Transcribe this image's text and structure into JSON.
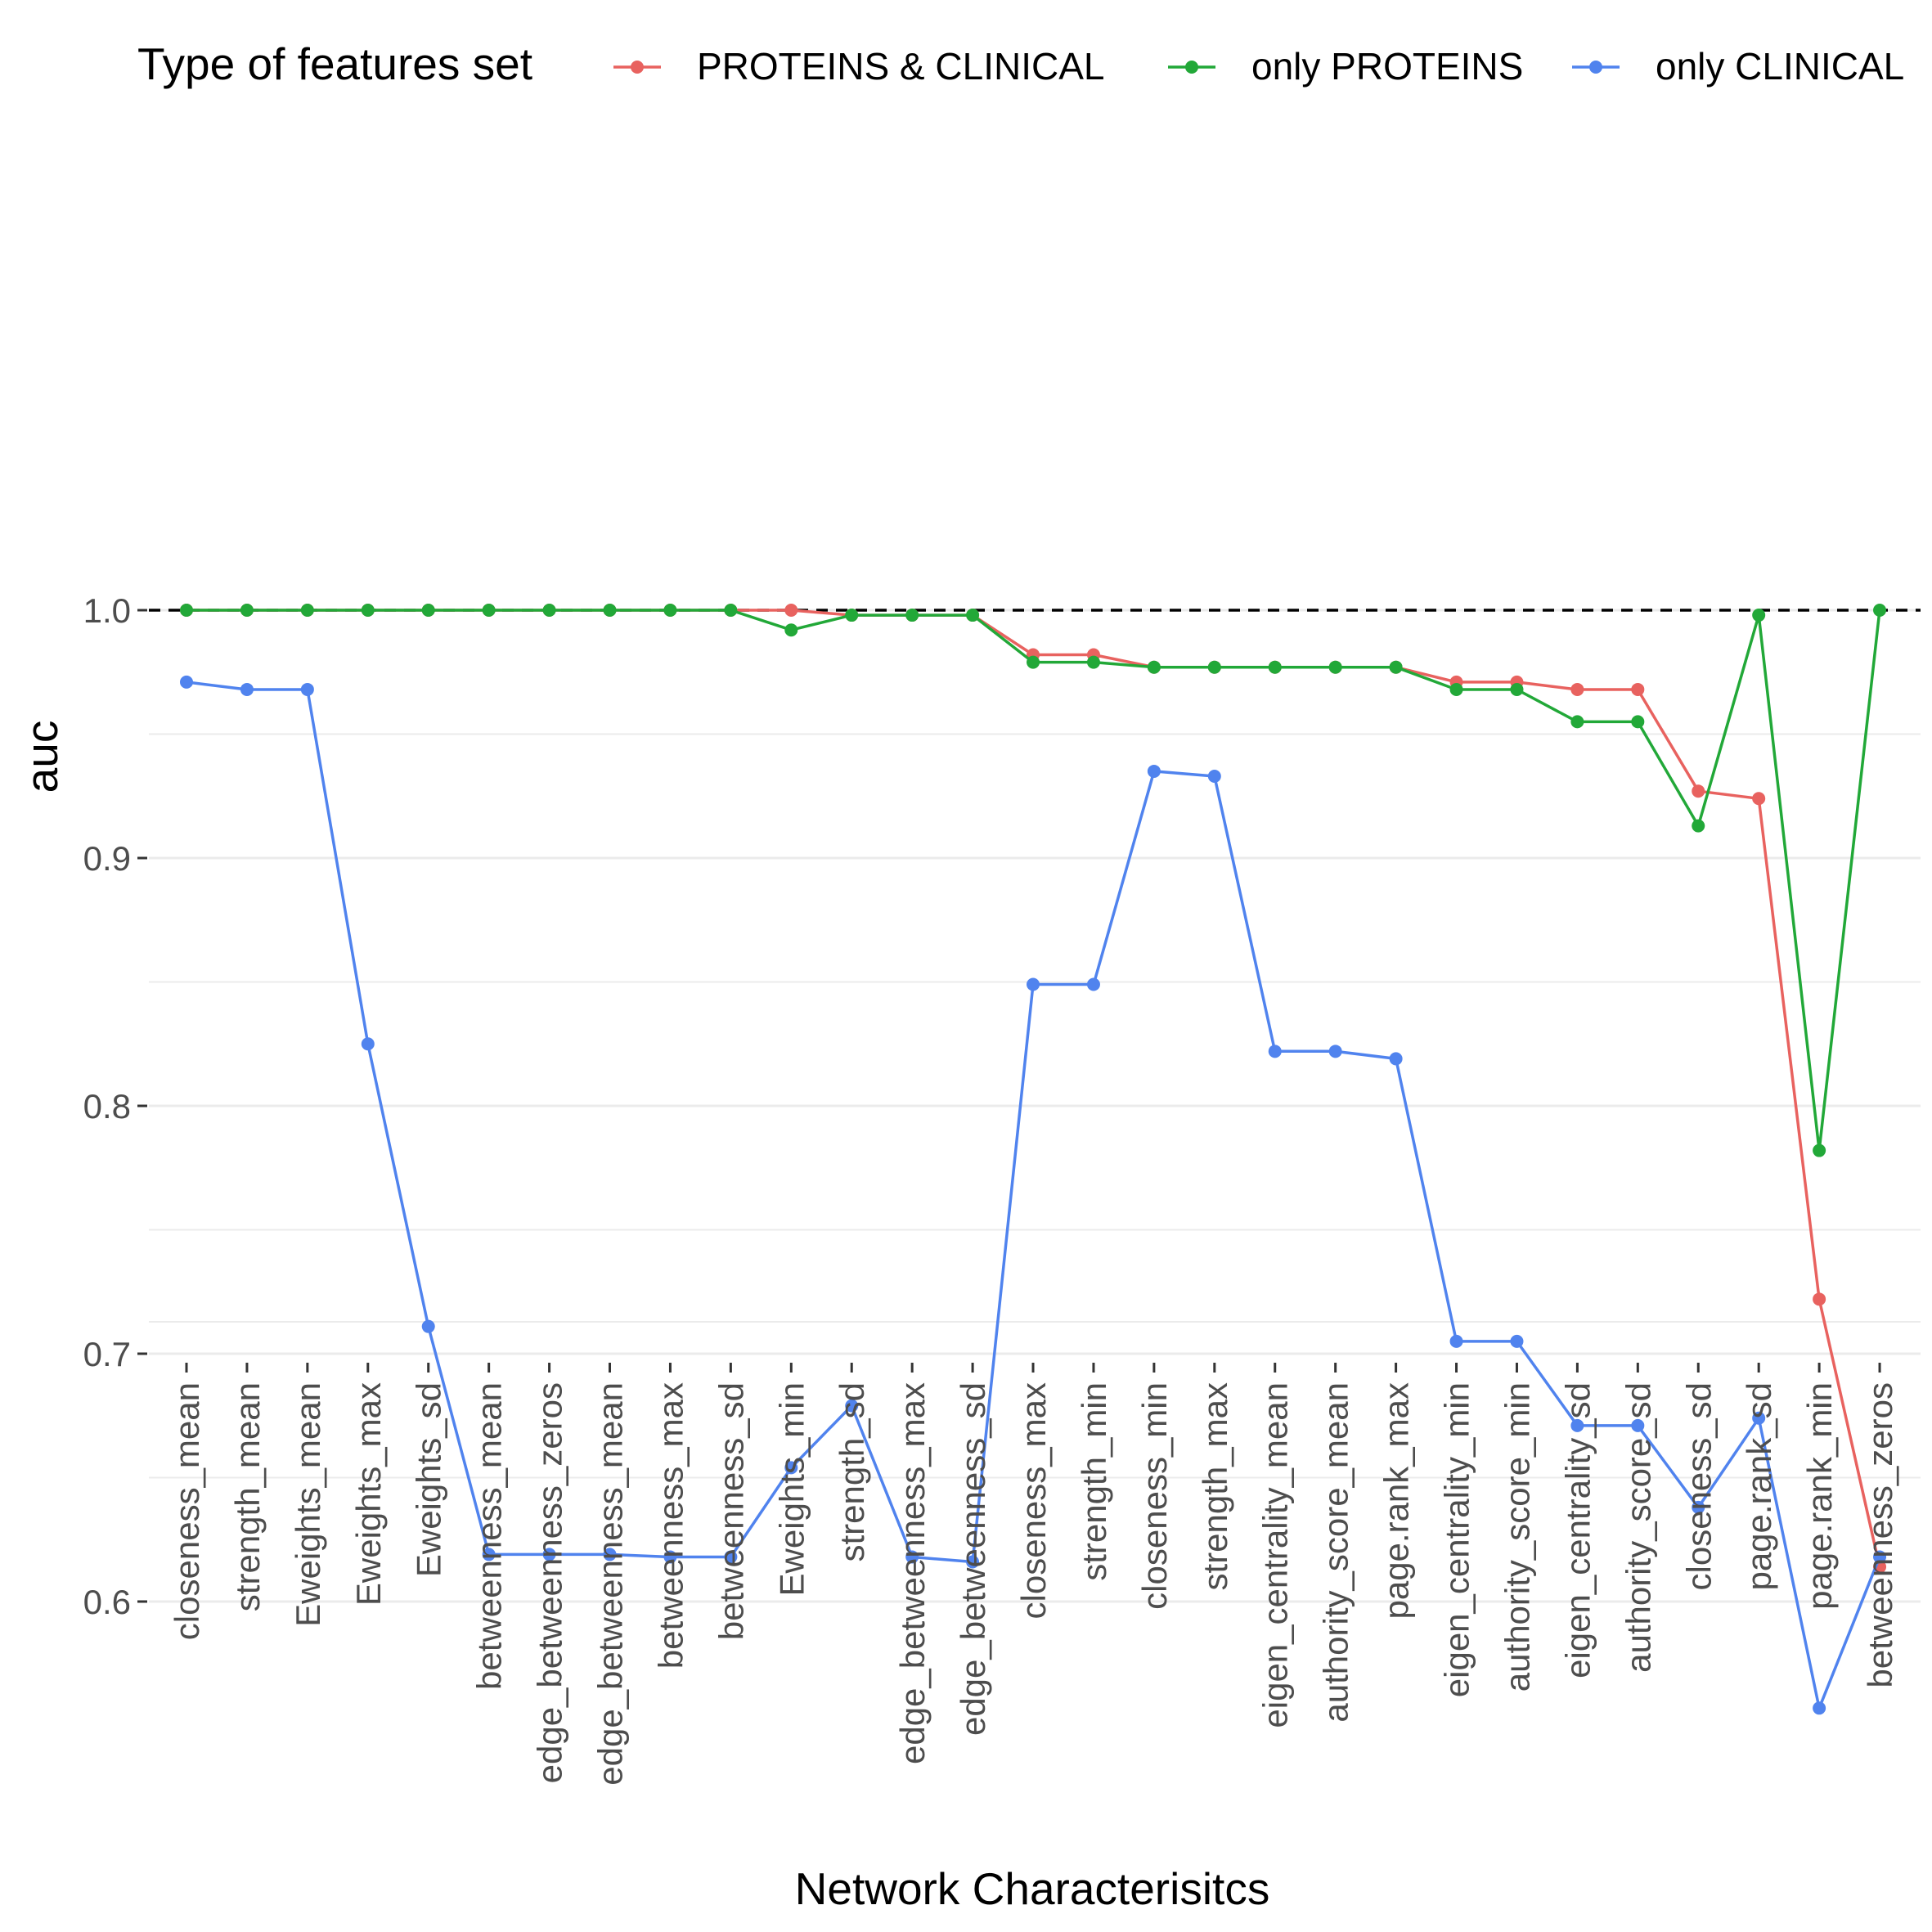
{
  "chart_data": {
    "type": "line",
    "title": "",
    "xlabel": "Network Characterisitcs",
    "ylabel": "auc",
    "ylim": [
      0.555,
      1.0
    ],
    "yticks": [
      0.6,
      0.7,
      0.8,
      0.9,
      1.0
    ],
    "ytick_labels": [
      "0.6",
      "0.7",
      "0.8",
      "0.9",
      "1.0"
    ],
    "grid": true,
    "reference_line": {
      "y": 1.0,
      "style": "dashed",
      "color": "#000000"
    },
    "legend": {
      "title": "Type of features set",
      "position": "top"
    },
    "categories": [
      "closeness_mean",
      "strength_mean",
      "Eweights_mean",
      "Eweights_max",
      "Eweights_sd",
      "betweenness_mean",
      "edge_betweenness_zeros",
      "edge_betweenness_mean",
      "betweenness_max",
      "betweenness_sd",
      "Eweights_min",
      "strength_sd",
      "edge_betweenness_max",
      "edge_betweenness_sd",
      "closeness_max",
      "strength_min",
      "closeness_min",
      "strength_max",
      "eigen_centrality_mean",
      "authority_score_mean",
      "page.rank_max",
      "eigen_centrality_min",
      "authority_score_min",
      "eigen_centrality_sd",
      "authority_score_sd",
      "closeness_sd",
      "page.rank_sd",
      "page.rank_min",
      "betweenness_zeros"
    ],
    "series": [
      {
        "name": "PROTEINS & CLINICAL",
        "color": "#E8625F",
        "values": [
          1.0,
          1.0,
          1.0,
          1.0,
          1.0,
          1.0,
          1.0,
          1.0,
          1.0,
          1.0,
          1.0,
          0.998,
          0.998,
          0.998,
          0.982,
          0.982,
          0.977,
          0.977,
          0.977,
          0.977,
          0.977,
          0.971,
          0.971,
          0.968,
          0.968,
          0.927,
          0.924,
          0.722,
          0.614
        ]
      },
      {
        "name": "only PROTEINS",
        "color": "#22A838",
        "values": [
          1.0,
          1.0,
          1.0,
          1.0,
          1.0,
          1.0,
          1.0,
          1.0,
          1.0,
          1.0,
          0.992,
          0.998,
          0.998,
          0.998,
          0.979,
          0.979,
          0.977,
          0.977,
          0.977,
          0.977,
          0.977,
          0.968,
          0.968,
          0.955,
          0.955,
          0.913,
          0.998,
          0.782,
          1.0
        ]
      },
      {
        "name": "only CLINICAL",
        "color": "#5083EE",
        "values": [
          0.971,
          0.968,
          0.968,
          0.825,
          0.711,
          0.619,
          0.619,
          0.619,
          0.618,
          0.618,
          0.654,
          0.679,
          0.618,
          0.616,
          0.849,
          0.849,
          0.935,
          0.933,
          0.822,
          0.822,
          0.819,
          0.705,
          0.705,
          0.671,
          0.671,
          0.638,
          0.674,
          0.557,
          0.618
        ]
      }
    ]
  }
}
